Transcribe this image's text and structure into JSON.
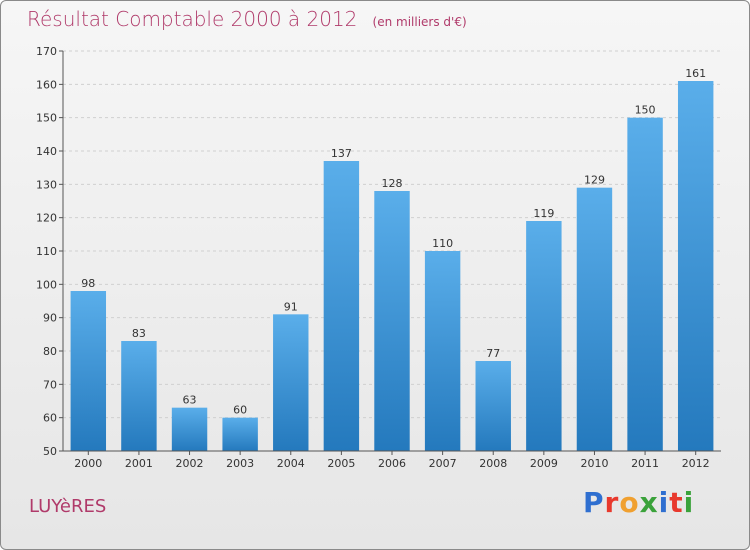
{
  "title": "Résultat Comptable 2000 à 2012",
  "subtitle": "(en milliers d'€)",
  "commune": "LUYèRES",
  "logo": {
    "text": "Proxiti",
    "letter_colors": [
      "#2f6fd0",
      "#e8392d",
      "#f0a030",
      "#3aa23a",
      "#2f6fd0",
      "#e8392d",
      "#3aa23a"
    ]
  },
  "colors": {
    "bar_top": "#5aaeea",
    "bar_bottom": "#2479bd",
    "grid": "#d0d0d0",
    "axis": "#555555",
    "title": "#b03a6a"
  },
  "chart_data": {
    "type": "bar",
    "categories": [
      "2000",
      "2001",
      "2002",
      "2003",
      "2004",
      "2005",
      "2006",
      "2007",
      "2008",
      "2009",
      "2010",
      "2011",
      "2012"
    ],
    "values": [
      98,
      83,
      63,
      60,
      91,
      137,
      128,
      110,
      77,
      119,
      129,
      150,
      161
    ],
    "ylim": [
      50,
      170
    ],
    "yticks": [
      50,
      60,
      70,
      80,
      90,
      100,
      110,
      120,
      130,
      140,
      150,
      160,
      170
    ],
    "grid": true,
    "data_labels": true
  }
}
